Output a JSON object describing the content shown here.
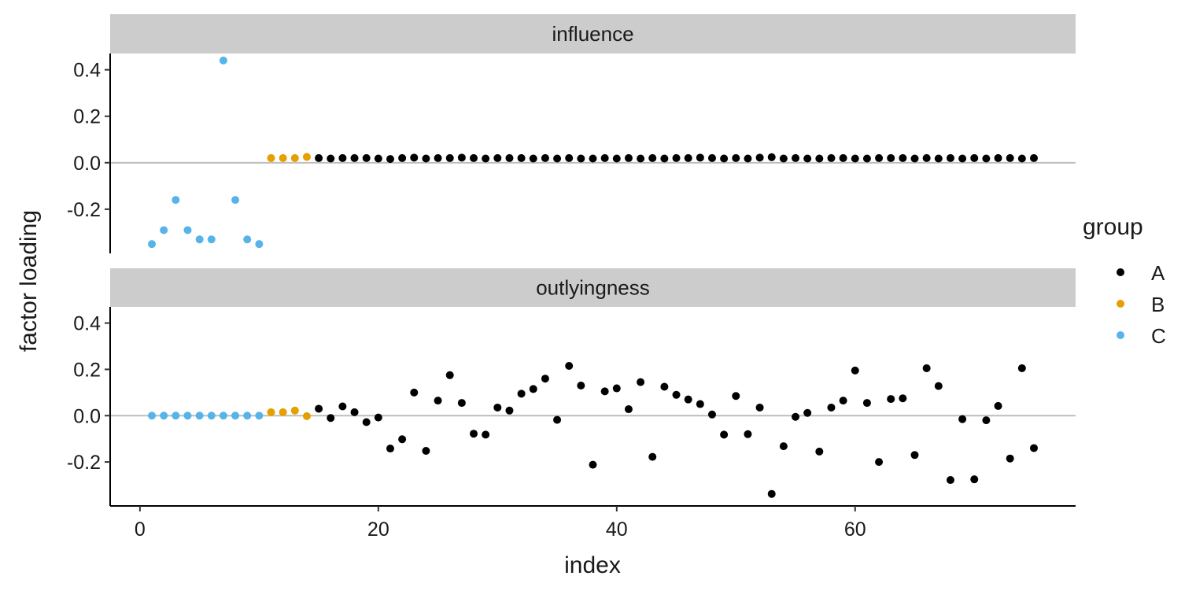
{
  "chart_data": {
    "type": "scatter",
    "xlabel": "index",
    "ylabel": "factor loading",
    "xlim": [
      -2.5,
      78.5
    ],
    "ylim": [
      -0.39,
      0.47
    ],
    "x_ticks": [
      0,
      20,
      40,
      60
    ],
    "y_ticks": [
      -0.2,
      0.0,
      0.2,
      0.4
    ],
    "x_tick_labels": [
      "0",
      "20",
      "40",
      "60"
    ],
    "y_tick_labels": [
      "-0.2",
      "0.0",
      "0.2",
      "0.4"
    ],
    "reference_line_y": 0,
    "grid": false,
    "legend": {
      "title": "group",
      "position": "right",
      "entries": [
        {
          "label": "A",
          "color": "#000000"
        },
        {
          "label": "B",
          "color": "#E69F00"
        },
        {
          "label": "C",
          "color": "#56B4E9"
        }
      ]
    },
    "group_ranges": [
      {
        "group": "C",
        "from": 1,
        "to": 10
      },
      {
        "group": "B",
        "from": 11,
        "to": 14
      },
      {
        "group": "A",
        "from": 15,
        "to": 75
      }
    ],
    "x": [
      1,
      2,
      3,
      4,
      5,
      6,
      7,
      8,
      9,
      10,
      11,
      12,
      13,
      14,
      15,
      16,
      17,
      18,
      19,
      20,
      21,
      22,
      23,
      24,
      25,
      26,
      27,
      28,
      29,
      30,
      31,
      32,
      33,
      34,
      35,
      36,
      37,
      38,
      39,
      40,
      41,
      42,
      43,
      44,
      45,
      46,
      47,
      48,
      49,
      50,
      51,
      52,
      53,
      54,
      55,
      56,
      57,
      58,
      59,
      60,
      61,
      62,
      63,
      64,
      65,
      66,
      67,
      68,
      69,
      70,
      71,
      72,
      73,
      74,
      75
    ],
    "panels": [
      {
        "title": "influence",
        "values": [
          -0.35,
          -0.29,
          -0.16,
          -0.29,
          -0.33,
          -0.33,
          0.44,
          -0.16,
          -0.33,
          -0.35,
          0.02,
          0.02,
          0.02,
          0.025,
          0.02,
          0.018,
          0.02,
          0.02,
          0.02,
          0.018,
          0.016,
          0.02,
          0.022,
          0.018,
          0.02,
          0.02,
          0.022,
          0.02,
          0.018,
          0.02,
          0.02,
          0.02,
          0.018,
          0.02,
          0.018,
          0.02,
          0.018,
          0.018,
          0.02,
          0.018,
          0.02,
          0.018,
          0.02,
          0.018,
          0.02,
          0.02,
          0.022,
          0.02,
          0.018,
          0.02,
          0.018,
          0.022,
          0.024,
          0.018,
          0.02,
          0.018,
          0.018,
          0.02,
          0.02,
          0.018,
          0.018,
          0.02,
          0.02,
          0.02,
          0.018,
          0.02,
          0.018,
          0.02,
          0.018,
          0.02,
          0.018,
          0.02,
          0.02,
          0.018,
          0.02
        ]
      },
      {
        "title": "outlyingness",
        "values": [
          0,
          0,
          0,
          0,
          0,
          0,
          0,
          0,
          0,
          0,
          0.015,
          0.015,
          0.022,
          -0.002,
          0.03,
          -0.01,
          0.04,
          0.015,
          -0.028,
          -0.008,
          -0.142,
          -0.102,
          0.1,
          -0.152,
          0.065,
          0.175,
          0.055,
          -0.078,
          -0.082,
          0.035,
          0.022,
          0.095,
          0.115,
          0.16,
          -0.018,
          0.215,
          0.13,
          -0.212,
          0.105,
          0.118,
          0.028,
          0.145,
          -0.178,
          0.125,
          0.09,
          0.07,
          0.05,
          0.005,
          -0.082,
          0.085,
          -0.08,
          0.035,
          -0.338,
          -0.132,
          -0.005,
          0.012,
          -0.155,
          0.035,
          0.065,
          0.195,
          0.055,
          -0.2,
          0.072,
          0.075,
          -0.17,
          0.205,
          0.128,
          -0.278,
          -0.015,
          -0.275,
          -0.02,
          0.042,
          -0.185,
          0.205,
          -0.14
        ]
      }
    ]
  }
}
